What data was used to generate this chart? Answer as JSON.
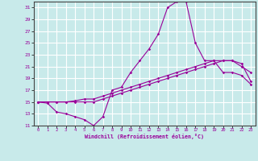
{
  "xlabel": "Windchill (Refroidissement éolien,°C)",
  "bg_color": "#c8eaea",
  "grid_color": "#ffffff",
  "line_color": "#990099",
  "xlim": [
    -0.5,
    23.5
  ],
  "ylim": [
    11,
    32
  ],
  "xticks": [
    0,
    1,
    2,
    3,
    4,
    5,
    6,
    7,
    8,
    9,
    10,
    11,
    12,
    13,
    14,
    15,
    16,
    17,
    18,
    19,
    20,
    21,
    22,
    23
  ],
  "yticks": [
    11,
    13,
    15,
    17,
    19,
    21,
    23,
    25,
    27,
    29,
    31
  ],
  "line1_x": [
    0,
    1,
    2,
    3,
    4,
    5,
    6,
    7,
    8,
    9,
    10,
    11,
    12,
    13,
    14,
    15,
    16,
    17,
    18,
    19,
    20,
    21,
    22,
    23
  ],
  "line1_y": [
    15,
    14.8,
    13.3,
    13,
    12.5,
    12,
    11,
    12.5,
    17,
    17.5,
    20,
    22,
    24,
    26.5,
    31,
    32,
    32,
    25,
    22,
    22,
    20,
    20,
    19.5,
    18
  ],
  "line2_x": [
    0,
    1,
    2,
    3,
    4,
    5,
    6,
    7,
    8,
    9,
    10,
    11,
    12,
    13,
    14,
    15,
    16,
    17,
    18,
    19,
    20,
    21,
    22,
    23
  ],
  "line2_y": [
    15,
    15,
    15,
    15,
    15.2,
    15.5,
    15.5,
    16,
    16.5,
    17,
    17.5,
    18,
    18.5,
    19,
    19.5,
    20,
    20.5,
    21,
    21.5,
    22,
    22,
    22,
    21,
    20
  ],
  "line3_x": [
    0,
    1,
    2,
    3,
    4,
    5,
    6,
    7,
    8,
    9,
    10,
    11,
    12,
    13,
    14,
    15,
    16,
    17,
    18,
    19,
    20,
    21,
    22,
    23
  ],
  "line3_y": [
    15,
    15,
    15,
    15,
    15,
    15,
    15,
    15.5,
    16,
    16.5,
    17,
    17.5,
    18,
    18.5,
    19,
    19.5,
    20,
    20.5,
    21,
    21.5,
    22,
    22,
    21.5,
    18.5
  ]
}
